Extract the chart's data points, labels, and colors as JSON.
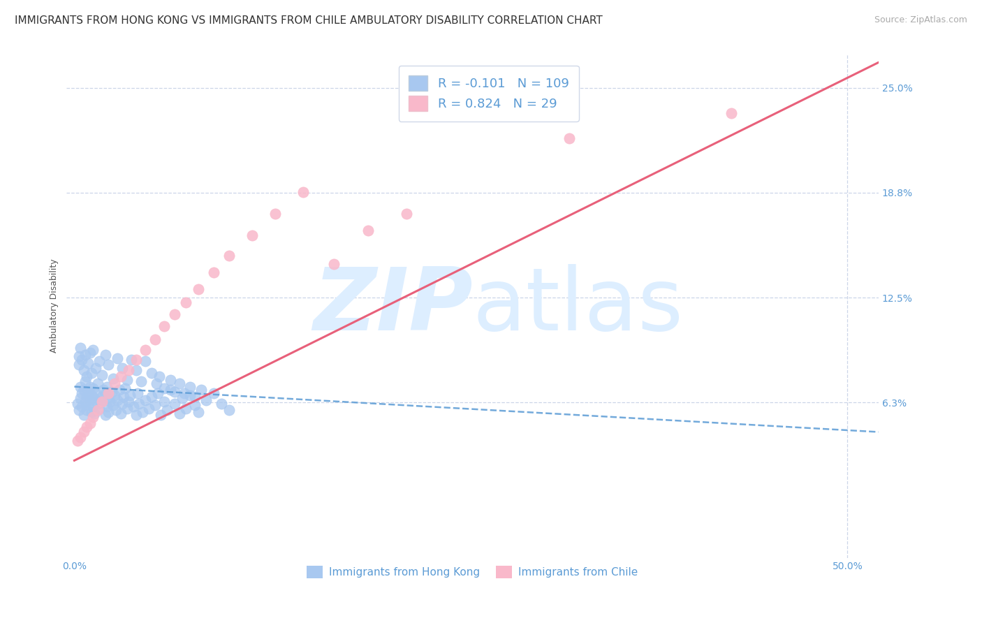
{
  "title": "IMMIGRANTS FROM HONG KONG VS IMMIGRANTS FROM CHILE AMBULATORY DISABILITY CORRELATION CHART",
  "source": "Source: ZipAtlas.com",
  "ylabel": "Ambulatory Disability",
  "xlim": [
    -0.005,
    0.52
  ],
  "ylim": [
    -0.03,
    0.27
  ],
  "hk_scatter_color": "#a8c8f0",
  "chile_scatter_color": "#f9b8ca",
  "hk_line_color": "#5b9bd5",
  "chile_line_color": "#e8607a",
  "R_hk": -0.101,
  "N_hk": 109,
  "R_chile": 0.824,
  "N_chile": 29,
  "legend_text_color": "#5b9bd5",
  "watermark_color": "#ddeeff",
  "background_color": "#ffffff",
  "grid_color": "#ccd5e8",
  "title_fontsize": 11,
  "axis_label_fontsize": 9,
  "tick_fontsize": 10,
  "legend_fontsize": 13,
  "bottom_legend": [
    "Immigrants from Hong Kong",
    "Immigrants from Chile"
  ],
  "hk_x": [
    0.002,
    0.003,
    0.004,
    0.004,
    0.005,
    0.005,
    0.006,
    0.006,
    0.007,
    0.007,
    0.008,
    0.008,
    0.009,
    0.009,
    0.01,
    0.01,
    0.011,
    0.011,
    0.012,
    0.012,
    0.013,
    0.013,
    0.014,
    0.015,
    0.015,
    0.016,
    0.017,
    0.018,
    0.019,
    0.02,
    0.02,
    0.021,
    0.021,
    0.022,
    0.022,
    0.023,
    0.024,
    0.025,
    0.026,
    0.027,
    0.028,
    0.029,
    0.03,
    0.031,
    0.032,
    0.033,
    0.034,
    0.035,
    0.036,
    0.038,
    0.04,
    0.041,
    0.042,
    0.044,
    0.046,
    0.048,
    0.05,
    0.052,
    0.054,
    0.056,
    0.058,
    0.06,
    0.062,
    0.065,
    0.068,
    0.07,
    0.072,
    0.075,
    0.078,
    0.08,
    0.003,
    0.003,
    0.004,
    0.005,
    0.006,
    0.007,
    0.008,
    0.009,
    0.01,
    0.011,
    0.012,
    0.014,
    0.016,
    0.018,
    0.02,
    0.022,
    0.025,
    0.028,
    0.031,
    0.034,
    0.037,
    0.04,
    0.043,
    0.046,
    0.05,
    0.053,
    0.055,
    0.058,
    0.062,
    0.065,
    0.068,
    0.071,
    0.075,
    0.078,
    0.082,
    0.085,
    0.09,
    0.095,
    0.1
  ],
  "hk_y": [
    0.062,
    0.058,
    0.065,
    0.072,
    0.06,
    0.068,
    0.055,
    0.07,
    0.063,
    0.075,
    0.058,
    0.066,
    0.061,
    0.069,
    0.064,
    0.072,
    0.057,
    0.067,
    0.06,
    0.071,
    0.056,
    0.065,
    0.068,
    0.062,
    0.074,
    0.059,
    0.063,
    0.066,
    0.07,
    0.055,
    0.068,
    0.06,
    0.072,
    0.057,
    0.065,
    0.063,
    0.069,
    0.061,
    0.067,
    0.058,
    0.064,
    0.07,
    0.056,
    0.062,
    0.066,
    0.071,
    0.059,
    0.063,
    0.067,
    0.06,
    0.055,
    0.068,
    0.062,
    0.057,
    0.064,
    0.059,
    0.066,
    0.061,
    0.068,
    0.055,
    0.063,
    0.058,
    0.07,
    0.062,
    0.056,
    0.065,
    0.059,
    0.067,
    0.061,
    0.057,
    0.09,
    0.085,
    0.095,
    0.088,
    0.082,
    0.091,
    0.078,
    0.086,
    0.092,
    0.08,
    0.094,
    0.083,
    0.087,
    0.079,
    0.091,
    0.085,
    0.077,
    0.089,
    0.083,
    0.076,
    0.088,
    0.082,
    0.075,
    0.087,
    0.08,
    0.074,
    0.078,
    0.071,
    0.076,
    0.069,
    0.074,
    0.068,
    0.072,
    0.066,
    0.07,
    0.064,
    0.068,
    0.062,
    0.058
  ],
  "chile_x": [
    0.002,
    0.004,
    0.006,
    0.008,
    0.01,
    0.012,
    0.015,
    0.018,
    0.022,
    0.026,
    0.03,
    0.035,
    0.04,
    0.046,
    0.052,
    0.058,
    0.065,
    0.072,
    0.08,
    0.09,
    0.1,
    0.115,
    0.13,
    0.148,
    0.168,
    0.19,
    0.215,
    0.32,
    0.425
  ],
  "chile_y": [
    0.04,
    0.042,
    0.045,
    0.048,
    0.05,
    0.054,
    0.058,
    0.063,
    0.068,
    0.074,
    0.078,
    0.082,
    0.088,
    0.094,
    0.1,
    0.108,
    0.115,
    0.122,
    0.13,
    0.14,
    0.15,
    0.162,
    0.175,
    0.188,
    0.145,
    0.165,
    0.175,
    0.22,
    0.235
  ]
}
